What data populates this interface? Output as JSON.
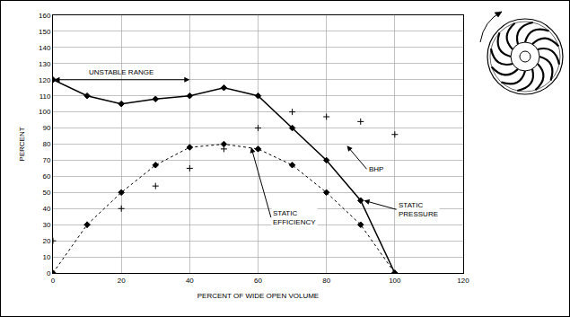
{
  "chart_data": {
    "type": "line",
    "x_label": "PERCENT OF WIDE OPEN VOLUME",
    "y_label": "PERCENT",
    "x": [
      0,
      10,
      20,
      30,
      40,
      50,
      60,
      70,
      80,
      90,
      100
    ],
    "series": [
      {
        "type": "line",
        "marker": "diamond",
        "line_style": "solid",
        "color": "#000000",
        "values": [
          120,
          110,
          105,
          108,
          110,
          115,
          110,
          90,
          70,
          45,
          0
        ]
      },
      {
        "type": "line",
        "marker": "diamond",
        "line_style": "dotted",
        "color": "#000000",
        "values": [
          0,
          30,
          50,
          67,
          78,
          80,
          77,
          67,
          50,
          30,
          0
        ]
      },
      {
        "type": "scatter",
        "marker": "cross",
        "color": "#000000",
        "values": [
          20,
          30,
          40,
          54,
          65,
          77,
          90,
          100,
          97,
          94,
          86
        ]
      }
    ],
    "annotations": [
      {
        "text": "UNSTABLE RANGE",
        "span": [
          0,
          40
        ],
        "y": 120
      },
      {
        "text": "BHP",
        "x": 86,
        "y": 79
      },
      {
        "text": "STATIC\nEFFICIENCY",
        "x": 58,
        "y": 78
      },
      {
        "text": "STATIC\nPRESSURE",
        "x": 91,
        "y": 45
      }
    ],
    "xlim": [
      0,
      120
    ],
    "xticks": [
      0,
      20,
      40,
      60,
      80,
      100,
      120
    ],
    "ylim": [
      0,
      160
    ],
    "yticks": [
      0,
      10,
      20,
      30,
      40,
      50,
      60,
      70,
      80,
      90,
      100,
      110,
      120,
      130,
      140,
      150,
      160
    ],
    "grid": true
  }
}
